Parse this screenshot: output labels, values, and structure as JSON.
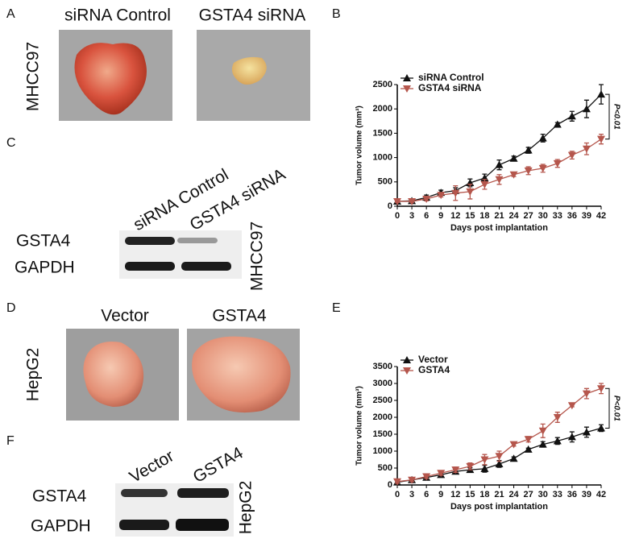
{
  "figure": {
    "panel_labels": [
      "A",
      "B",
      "C",
      "D",
      "E",
      "F"
    ],
    "photos_top": {
      "labels": [
        "siRNA Control",
        "GSTA4 siRNA"
      ],
      "cell_line": "MHCC97"
    },
    "blot_top": {
      "lanes": [
        "siRNA Control",
        "GSTA4 siRNA"
      ],
      "rows": [
        "GSTA4",
        "GAPDH"
      ],
      "cell_line": "MHCC97"
    },
    "photos_bottom": {
      "labels": [
        "Vector",
        "GSTA4"
      ],
      "cell_line": "HepG2"
    },
    "blot_bottom": {
      "lanes": [
        "Vector",
        "GSTA4"
      ],
      "rows": [
        "GSTA4",
        "GAPDH"
      ],
      "cell_line": "HepG2"
    }
  },
  "chart_data": [
    {
      "type": "line",
      "xlabel": "Days post implantation",
      "ylabel": "Tumor volume (mm³)",
      "annotation": "P<0.01",
      "legend": "upper left",
      "x": [
        0,
        3,
        6,
        9,
        12,
        15,
        18,
        21,
        24,
        27,
        30,
        33,
        36,
        39,
        42
      ],
      "xlim": [
        0,
        42
      ],
      "xticks": [
        0,
        3,
        6,
        9,
        12,
        15,
        18,
        21,
        24,
        27,
        30,
        33,
        36,
        39,
        42
      ],
      "ylim": [
        0,
        2500
      ],
      "yticks": [
        0,
        500,
        1000,
        1500,
        2000,
        2500
      ],
      "series": [
        {
          "name": "siRNA Control",
          "color": "#111111",
          "marker": "triangle-up",
          "values": [
            100,
            110,
            180,
            280,
            320,
            480,
            580,
            850,
            980,
            1150,
            1400,
            1680,
            1850,
            2000,
            2300
          ],
          "errors": [
            20,
            20,
            50,
            50,
            60,
            80,
            80,
            100,
            50,
            60,
            80,
            40,
            100,
            180,
            200
          ]
        },
        {
          "name": "GSTA4 siRNA",
          "color": "#b5564c",
          "marker": "triangle-down",
          "values": [
            100,
            100,
            150,
            230,
            270,
            300,
            450,
            550,
            650,
            730,
            780,
            880,
            1050,
            1180,
            1380
          ],
          "errors": [
            20,
            20,
            40,
            40,
            150,
            150,
            100,
            100,
            40,
            80,
            80,
            80,
            80,
            120,
            100
          ]
        }
      ]
    },
    {
      "type": "line",
      "xlabel": "Days post implantation",
      "ylabel": "Tumor volume (mm³)",
      "annotation": "P<0.01",
      "legend": "upper left",
      "x": [
        0,
        3,
        6,
        9,
        12,
        15,
        18,
        21,
        24,
        27,
        30,
        33,
        36,
        39,
        42
      ],
      "xlim": [
        0,
        42
      ],
      "xticks": [
        0,
        3,
        6,
        9,
        12,
        15,
        18,
        21,
        24,
        27,
        30,
        33,
        36,
        39,
        42
      ],
      "ylim": [
        0,
        3500
      ],
      "yticks": [
        0,
        500,
        1000,
        1500,
        2000,
        2500,
        3000,
        3500
      ],
      "series": [
        {
          "name": "Vector",
          "color": "#111111",
          "marker": "triangle-up",
          "values": [
            80,
            150,
            220,
            300,
            400,
            450,
            480,
            620,
            780,
            1050,
            1200,
            1300,
            1420,
            1560,
            1680
          ],
          "errors": [
            40,
            40,
            50,
            50,
            60,
            60,
            100,
            100,
            50,
            40,
            80,
            100,
            150,
            150,
            100
          ]
        },
        {
          "name": "GSTA4",
          "color": "#b5564c",
          "marker": "triangle-down",
          "values": [
            100,
            150,
            250,
            350,
            450,
            550,
            750,
            850,
            1200,
            1350,
            1600,
            2000,
            2350,
            2700,
            2850
          ],
          "errors": [
            50,
            50,
            60,
            60,
            80,
            100,
            150,
            150,
            50,
            80,
            200,
            150,
            40,
            150,
            150
          ]
        }
      ]
    }
  ]
}
